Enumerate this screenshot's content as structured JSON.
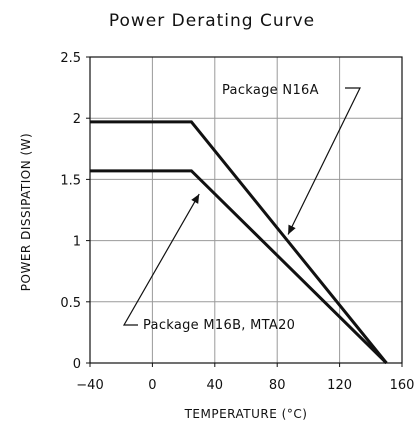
{
  "chart_data": {
    "type": "line",
    "title": "Power Derating Curve",
    "xlabel": "TEMPERATURE (°C)",
    "ylabel": "POWER DISSIPATION (W)",
    "xlim": [
      -40,
      160
    ],
    "ylim": [
      0,
      2.5
    ],
    "xticks": [
      -40,
      0,
      40,
      80,
      120,
      160
    ],
    "xtick_labels": [
      "−40",
      "0",
      "40",
      "80",
      "120",
      "160"
    ],
    "yticks": [
      0,
      0.5,
      1,
      1.5,
      2,
      2.5
    ],
    "ytick_labels": [
      "0",
      "0.5",
      "1",
      "1.5",
      "2",
      "2.5"
    ],
    "grid": true,
    "series": [
      {
        "x": [
          -40,
          25,
          150
        ],
        "y": [
          1.97,
          1.97,
          0
        ]
      },
      {
        "x": [
          -40,
          25,
          150
        ],
        "y": [
          1.57,
          1.57,
          0
        ]
      }
    ],
    "annotations": [
      {
        "text": "Package N16A",
        "target": {
          "x": 87,
          "y": 1.05
        }
      },
      {
        "text": "Package M16B, MTA20",
        "target": {
          "x": 30,
          "y": 1.38
        }
      }
    ],
    "line_color": "#111111",
    "grid_color": "#9a9a9a"
  }
}
